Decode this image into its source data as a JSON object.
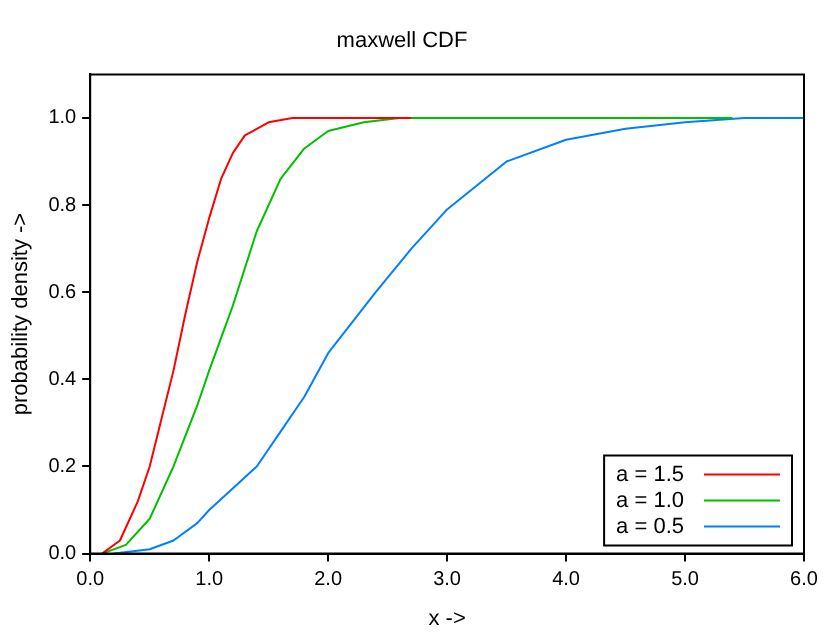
{
  "chart_data": {
    "type": "line",
    "title": "maxwell CDF",
    "xlabel": "x ->",
    "ylabel": "probability density ->",
    "xlim": [
      0,
      6
    ],
    "xticks": [
      {
        "value": 0,
        "label": "0.0"
      },
      {
        "value": 1,
        "label": "1.0"
      },
      {
        "value": 2,
        "label": "2.0"
      },
      {
        "value": 3,
        "label": "3.0"
      },
      {
        "value": 4,
        "label": "4.0"
      },
      {
        "value": 5,
        "label": "5.0"
      },
      {
        "value": 6,
        "label": "6.0"
      }
    ],
    "ylim": [
      0,
      1.1
    ],
    "yticks": [
      {
        "value": 0,
        "label": "0.0"
      },
      {
        "value": 0.2,
        "label": "0.2"
      },
      {
        "value": 0.4,
        "label": "0.4"
      },
      {
        "value": 0.6,
        "label": "0.6"
      },
      {
        "value": 0.8,
        "label": "0.8"
      },
      {
        "value": 1,
        "label": "1.0"
      }
    ],
    "grid": false,
    "legend": "bottom right",
    "marker": "none",
    "line_style": "solid",
    "series": [
      {
        "name": "a = 1.5",
        "color": "#ff0000",
        "x": [
          0.1,
          0.25,
          0.4,
          0.5,
          0.6,
          0.7,
          0.8,
          0.9,
          1.0,
          1.1,
          1.2,
          1.3,
          1.5,
          1.7,
          2.7
        ],
        "values": [
          0,
          0.03,
          0.12,
          0.2,
          0.31,
          0.42,
          0.55,
          0.67,
          0.77,
          0.86,
          0.92,
          0.96,
          0.99,
          1.0,
          1.0
        ]
      },
      {
        "name": "a = 1.0",
        "color": "#00c000",
        "x": [
          0.1,
          0.3,
          0.5,
          0.7,
          0.9,
          1.0,
          1.2,
          1.4,
          1.6,
          1.8,
          2.0,
          2.3,
          2.6,
          5.4
        ],
        "values": [
          0,
          0.02,
          0.08,
          0.2,
          0.34,
          0.42,
          0.57,
          0.74,
          0.86,
          0.93,
          0.97,
          0.99,
          1.0,
          1.0
        ]
      },
      {
        "name": "a = 0.5",
        "color": "#0080ff",
        "x": [
          0.2,
          0.5,
          0.7,
          0.9,
          1.0,
          1.2,
          1.4,
          1.6,
          1.8,
          2.0,
          2.2,
          2.4,
          2.7,
          3.0,
          3.5,
          4.0,
          4.5,
          5.0,
          5.5,
          6.0
        ],
        "values": [
          0,
          0.01,
          0.03,
          0.07,
          0.1,
          0.15,
          0.2,
          0.28,
          0.36,
          0.46,
          0.53,
          0.6,
          0.7,
          0.79,
          0.9,
          0.95,
          0.975,
          0.99,
          1.0,
          1.0
        ]
      }
    ]
  }
}
